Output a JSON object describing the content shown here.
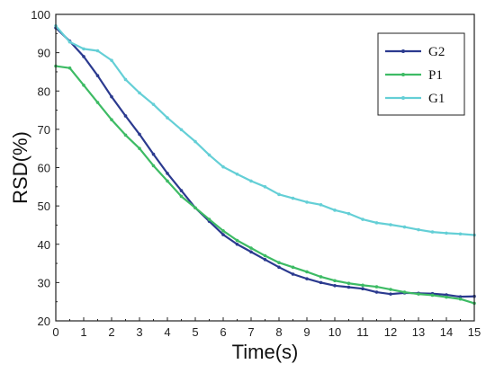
{
  "chart_data": {
    "type": "line",
    "xlabel": "Time(s)",
    "ylabel": "RSD(%)",
    "xlim": [
      0,
      15
    ],
    "ylim": [
      20,
      100
    ],
    "x_ticks": [
      "0",
      "1",
      "2",
      "3",
      "4",
      "5",
      "6",
      "7",
      "8",
      "9",
      "10",
      "11",
      "12",
      "13",
      "14",
      "15"
    ],
    "y_ticks": [
      "20",
      "30",
      "40",
      "50",
      "60",
      "70",
      "80",
      "90",
      "100"
    ],
    "grid": false,
    "legend_position": "top-right",
    "x": [
      0,
      0.5,
      1,
      1.5,
      2,
      2.5,
      3,
      3.5,
      4,
      4.5,
      5,
      5.5,
      6,
      6.5,
      7,
      7.5,
      8,
      8.5,
      9,
      9.5,
      10,
      10.5,
      11,
      11.5,
      12,
      12.5,
      13,
      13.5,
      14,
      14.5,
      15
    ],
    "series": [
      {
        "name": "G2",
        "color": "#2b3a8f",
        "values": [
          96.5,
          93,
          89,
          84,
          78.5,
          73.5,
          68.7,
          63.5,
          58.5,
          54,
          49.5,
          46,
          42.5,
          40,
          38,
          36,
          34,
          32.2,
          31,
          30,
          29.2,
          28.8,
          28.4,
          27.5,
          27,
          27.3,
          27.2,
          27.1,
          26.8,
          26.3,
          26.4
        ]
      },
      {
        "name": "P1",
        "color": "#3dbb64",
        "values": [
          86.5,
          86,
          81.5,
          77,
          72.5,
          68.5,
          65,
          60.5,
          56.5,
          52.5,
          49.5,
          46.5,
          43.5,
          41,
          39,
          37,
          35.2,
          34,
          32.8,
          31.5,
          30.5,
          29.8,
          29.3,
          28.9,
          28.2,
          27.5,
          27.0,
          26.7,
          26.2,
          25.7,
          24.6
        ]
      },
      {
        "name": "G1",
        "color": "#64cfd6",
        "values": [
          97,
          92.8,
          91,
          90.5,
          88,
          83,
          79.5,
          76.5,
          73,
          69.9,
          66.8,
          63.3,
          60.2,
          58.3,
          56.5,
          55,
          53,
          52,
          51,
          50.3,
          48.9,
          48,
          46.5,
          45.6,
          45.1,
          44.5,
          43.8,
          43.2,
          42.9,
          42.7,
          42.4
        ]
      }
    ]
  }
}
